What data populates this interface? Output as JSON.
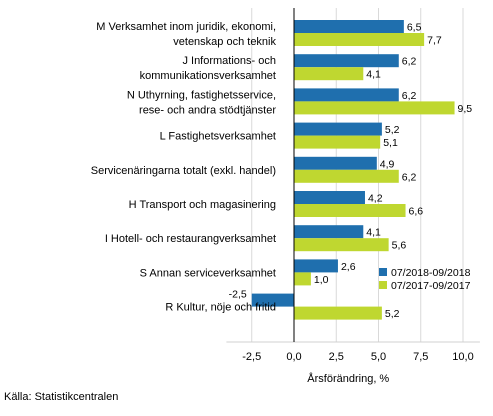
{
  "chart_data": {
    "type": "bar",
    "orientation": "horizontal",
    "categories": [
      [
        "M Verksamhet inom juridik, ekonomi,",
        "vetenskap och teknik"
      ],
      [
        "J Informations-  och",
        "kommunikationsverksamhet"
      ],
      [
        "N Uthyrning, fastighetsservice,",
        "rese- och andra stödtjänster"
      ],
      [
        "L Fastighetsverksamhet"
      ],
      [
        "Servicenäringarna totalt (exkl. handel)"
      ],
      [
        "H Transport och magasinering"
      ],
      [
        "I Hotell- och restaurangverksamhet"
      ],
      [
        "S Annan serviceverksamhet"
      ],
      [
        "R Kultur, nöje och fritid"
      ]
    ],
    "series": [
      {
        "name": "07/2018-09/2018",
        "color": "#1f6fae",
        "values": [
          6.5,
          6.2,
          6.2,
          5.2,
          4.9,
          4.2,
          4.1,
          2.6,
          -2.5
        ],
        "labels": [
          "6,5",
          "6,2",
          "6,2",
          "5,2",
          "4,9",
          "4,2",
          "4,1",
          "2,6",
          "-2,5"
        ]
      },
      {
        "name": "07/2017-09/2017",
        "color": "#bfd730",
        "values": [
          7.7,
          4.1,
          9.5,
          5.1,
          6.2,
          6.6,
          5.6,
          1.0,
          5.2
        ],
        "labels": [
          "7,7",
          "4,1",
          "9,5",
          "5,1",
          "6,2",
          "6,6",
          "5,6",
          "1,0",
          "5,2"
        ]
      }
    ],
    "xlim": [
      -4.0,
      11.0
    ],
    "xticks": [
      -2.5,
      0.0,
      2.5,
      5.0,
      7.5,
      10.0
    ],
    "xtick_labels": [
      "-2,5",
      "0,0",
      "2,5",
      "5,0",
      "7,5",
      "10,0"
    ],
    "xlabel": "Årsförändring, %",
    "ylabel": "",
    "title": "",
    "grid": "vertical",
    "legend_position": "bottom-right"
  },
  "source": "Källa: Statistikcentralen"
}
